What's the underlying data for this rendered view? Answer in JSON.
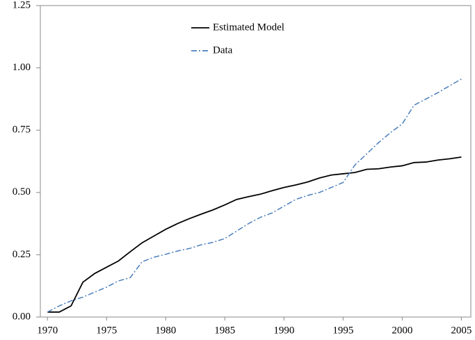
{
  "chart_data": {
    "type": "line",
    "x": [
      1970,
      1971,
      1972,
      1973,
      1974,
      1975,
      1976,
      1977,
      1978,
      1979,
      1980,
      1981,
      1982,
      1983,
      1984,
      1985,
      1986,
      1987,
      1988,
      1989,
      1990,
      1991,
      1992,
      1993,
      1994,
      1995,
      1996,
      1997,
      1998,
      1999,
      2000,
      2001,
      2002,
      2003,
      2004,
      2005
    ],
    "series": [
      {
        "name": "Estimated Model",
        "color": "#000000",
        "dash": "solid",
        "values": [
          0.02,
          0.02,
          0.045,
          0.14,
          0.175,
          0.2,
          0.225,
          0.262,
          0.298,
          0.325,
          0.352,
          0.375,
          0.395,
          0.413,
          0.43,
          0.45,
          0.472,
          0.483,
          0.493,
          0.507,
          0.52,
          0.53,
          0.542,
          0.558,
          0.57,
          0.575,
          0.58,
          0.593,
          0.595,
          0.602,
          0.607,
          0.62,
          0.622,
          0.63,
          0.635,
          0.642
        ]
      },
      {
        "name": "Data",
        "color": "#4a7ebb",
        "dash": "dashdot",
        "values": [
          0.02,
          0.045,
          0.065,
          0.08,
          0.1,
          0.12,
          0.145,
          0.158,
          0.222,
          0.24,
          0.252,
          0.265,
          0.275,
          0.29,
          0.3,
          0.315,
          0.345,
          0.375,
          0.4,
          0.418,
          0.445,
          0.472,
          0.488,
          0.5,
          0.52,
          0.54,
          0.61,
          0.655,
          0.7,
          0.74,
          0.775,
          0.85,
          0.875,
          0.9,
          0.928,
          0.955
        ]
      }
    ],
    "xlim": [
      1969.4,
      2005.8
    ],
    "xticks": [
      1970,
      1975,
      1980,
      1985,
      1990,
      1995,
      2000,
      2005
    ],
    "ylim": [
      0,
      1.25
    ],
    "yticks": [
      {
        "value": 0,
        "label": "0.00"
      },
      {
        "value": 0.25,
        "label": "0.25"
      },
      {
        "value": 0.5,
        "label": "0.50"
      },
      {
        "value": 0.75,
        "label": "0.75"
      },
      {
        "value": 1,
        "label": "1.00"
      },
      {
        "value": 1.25,
        "label": "1.25"
      }
    ],
    "grid": false,
    "legend": "upper center"
  }
}
